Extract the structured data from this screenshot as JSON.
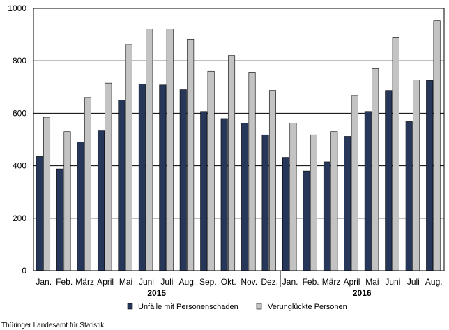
{
  "chart_data": {
    "type": "bar",
    "categories": [
      "Jan.",
      "Feb.",
      "März",
      "April",
      "Mai",
      "Juni",
      "Juli",
      "Aug.",
      "Sep.",
      "Okt.",
      "Nov.",
      "Dez.",
      "Jan.",
      "Feb.",
      "März",
      "April",
      "Mai",
      "Juni",
      "Juli",
      "Aug."
    ],
    "group_labels": [
      {
        "label": "2015",
        "from": 0,
        "to": 11
      },
      {
        "label": "2016",
        "from": 12,
        "to": 19
      }
    ],
    "series": [
      {
        "name": "Unfälle mit Personenschaden",
        "color": "#27375a",
        "values": [
          435,
          388,
          490,
          533,
          650,
          712,
          708,
          690,
          607,
          580,
          563,
          518,
          432,
          380,
          415,
          512,
          607,
          687,
          568,
          725
        ]
      },
      {
        "name": "Verunglückte Personen",
        "color": "#c3c3c3",
        "values": [
          585,
          530,
          660,
          715,
          862,
          922,
          922,
          882,
          760,
          820,
          757,
          687,
          563,
          518,
          530,
          668,
          770,
          890,
          727,
          953
        ]
      }
    ],
    "ylim": [
      0,
      1000
    ],
    "yticks": [
      0,
      200,
      400,
      600,
      800,
      1000
    ],
    "grid": true,
    "legend_position": "bottom"
  },
  "source_text": "Thüringer Landesamt für Statistik"
}
